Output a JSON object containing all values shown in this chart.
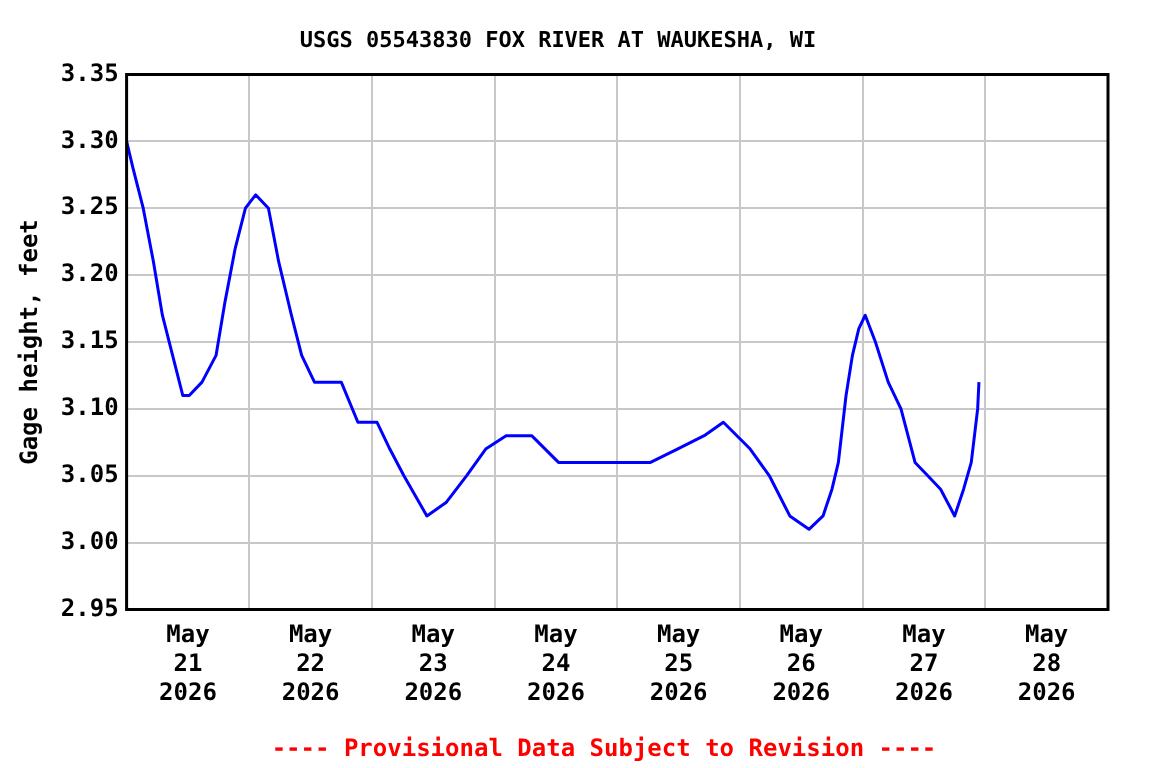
{
  "chart_data": {
    "type": "line",
    "title": "USGS 05543830 FOX RIVER AT WAUKESHA, WI",
    "ylabel": "Gage height, feet",
    "annotations": [
      "---- Provisional Data Subject to Revision ----"
    ],
    "x": [
      "2026-05-21T00:00",
      "2026-05-21T01:15",
      "2026-05-21T03:15",
      "2026-05-21T05:15",
      "2026-05-21T07:00",
      "2026-05-21T09:00",
      "2026-05-21T11:00",
      "2026-05-21T12:15",
      "2026-05-21T14:45",
      "2026-05-21T17:30",
      "2026-05-21T19:15",
      "2026-05-21T21:15",
      "2026-05-21T23:15",
      "2026-05-22T01:15",
      "2026-05-22T03:45",
      "2026-05-22T05:45",
      "2026-05-22T08:15",
      "2026-05-22T10:15",
      "2026-05-22T12:45",
      "2026-05-22T18:00",
      "2026-05-22T21:15",
      "2026-05-23T01:00",
      "2026-05-23T03:30",
      "2026-05-23T06:15",
      "2026-05-23T10:45",
      "2026-05-23T14:30",
      "2026-05-23T18:30",
      "2026-05-23T22:15",
      "2026-05-24T02:15",
      "2026-05-24T07:15",
      "2026-05-24T12:30",
      "2026-05-24T17:45",
      "2026-05-25T00:00",
      "2026-05-25T06:30",
      "2026-05-25T11:45",
      "2026-05-25T17:00",
      "2026-05-25T20:45",
      "2026-05-26T02:00",
      "2026-05-26T05:45",
      "2026-05-26T09:45",
      "2026-05-26T13:30",
      "2026-05-26T16:15",
      "2026-05-26T18:00",
      "2026-05-26T19:15",
      "2026-05-26T20:45",
      "2026-05-26T22:00",
      "2026-05-26T23:15",
      "2026-05-27T00:30",
      "2026-05-27T02:30",
      "2026-05-27T05:00",
      "2026-05-27T07:30",
      "2026-05-27T10:15",
      "2026-05-27T12:45",
      "2026-05-27T15:15",
      "2026-05-27T18:00",
      "2026-05-27T19:45",
      "2026-05-27T21:15",
      "2026-05-27T22:30",
      "2026-05-27T22:45"
    ],
    "series": [
      {
        "color": "#0000ff",
        "values": [
          3.3,
          3.28,
          3.25,
          3.21,
          3.17,
          3.14,
          3.11,
          3.11,
          3.12,
          3.14,
          3.18,
          3.22,
          3.25,
          3.26,
          3.25,
          3.21,
          3.17,
          3.14,
          3.12,
          3.12,
          3.09,
          3.09,
          3.07,
          3.05,
          3.02,
          3.03,
          3.05,
          3.07,
          3.08,
          3.08,
          3.06,
          3.06,
          3.06,
          3.06,
          3.07,
          3.08,
          3.09,
          3.07,
          3.05,
          3.02,
          3.01,
          3.02,
          3.04,
          3.06,
          3.11,
          3.14,
          3.16,
          3.17,
          3.15,
          3.12,
          3.1,
          3.06,
          3.05,
          3.04,
          3.02,
          3.04,
          3.06,
          3.1,
          3.12
        ]
      }
    ],
    "xlim": [
      "2026-05-21T00:00",
      "2026-05-29T00:00"
    ],
    "xticks": [
      {
        "value": "2026-05-21T00:00",
        "label": null
      },
      {
        "value": "2026-05-21T12:00",
        "label": "May 21 2026"
      },
      {
        "value": "2026-05-22T00:00",
        "label": null
      },
      {
        "value": "2026-05-22T12:00",
        "label": "May 22 2026"
      },
      {
        "value": "2026-05-23T00:00",
        "label": null
      },
      {
        "value": "2026-05-23T12:00",
        "label": "May 23 2026"
      },
      {
        "value": "2026-05-24T00:00",
        "label": null
      },
      {
        "value": "2026-05-24T12:00",
        "label": "May 24 2026"
      },
      {
        "value": "2026-05-25T00:00",
        "label": null
      },
      {
        "value": "2026-05-25T12:00",
        "label": "May 25 2026"
      },
      {
        "value": "2026-05-26T00:00",
        "label": null
      },
      {
        "value": "2026-05-26T12:00",
        "label": "May 26 2026"
      },
      {
        "value": "2026-05-27T00:00",
        "label": null
      },
      {
        "value": "2026-05-27T12:00",
        "label": "May 27 2026"
      },
      {
        "value": "2026-05-28T00:00",
        "label": null
      },
      {
        "value": "2026-05-28T12:00",
        "label": "May 28 2026"
      },
      {
        "value": "2026-05-29T00:00",
        "label": null
      }
    ],
    "ylim": [
      2.95,
      3.35
    ],
    "yticks": [
      2.95,
      {
        "value": 3.0,
        "label": "3.00"
      },
      3.05,
      {
        "value": 3.1,
        "label": "3.10"
      },
      3.15,
      {
        "value": 3.2,
        "label": "3.20"
      },
      3.25,
      {
        "value": 3.3,
        "label": "3.30"
      },
      3.35
    ],
    "grid": true,
    "marker": "none",
    "line_style": "solid",
    "legend": false
  }
}
